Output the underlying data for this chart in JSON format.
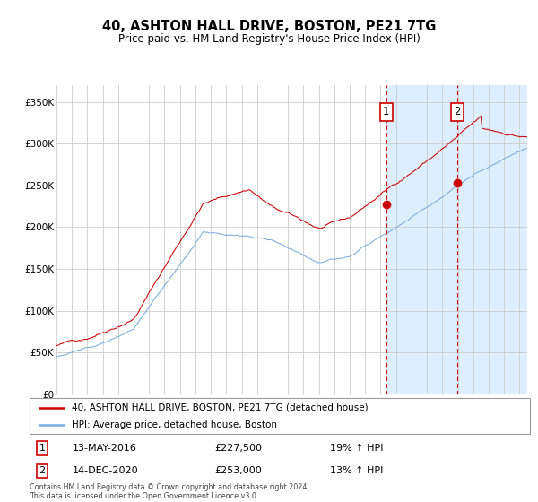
{
  "title": "40, ASHTON HALL DRIVE, BOSTON, PE21 7TG",
  "subtitle": "Price paid vs. HM Land Registry's House Price Index (HPI)",
  "ylabel_ticks": [
    "£0",
    "£50K",
    "£100K",
    "£150K",
    "£200K",
    "£250K",
    "£300K",
    "£350K"
  ],
  "ytick_values": [
    0,
    50000,
    100000,
    150000,
    200000,
    250000,
    300000,
    350000
  ],
  "ylim": [
    0,
    370000
  ],
  "xlim_start": 1995.0,
  "xlim_end": 2025.5,
  "hpi_color": "#7aace0",
  "price_color": "#cc0000",
  "bg_color": "#ddeeff",
  "grid_color": "#cccccc",
  "marker1_x": 2016.37,
  "marker1_y": 227500,
  "marker2_x": 2020.96,
  "marker2_y": 253000,
  "marker1_label": "13-MAY-2016",
  "marker1_price": "£227,500",
  "marker1_hpi": "19% ↑ HPI",
  "marker2_label": "14-DEC-2020",
  "marker2_price": "£253,000",
  "marker2_hpi": "13% ↑ HPI",
  "legend_line1": "40, ASHTON HALL DRIVE, BOSTON, PE21 7TG (detached house)",
  "legend_line2": "HPI: Average price, detached house, Boston",
  "footnote": "Contains HM Land Registry data © Crown copyright and database right 2024.\nThis data is licensed under the Open Government Licence v3.0."
}
